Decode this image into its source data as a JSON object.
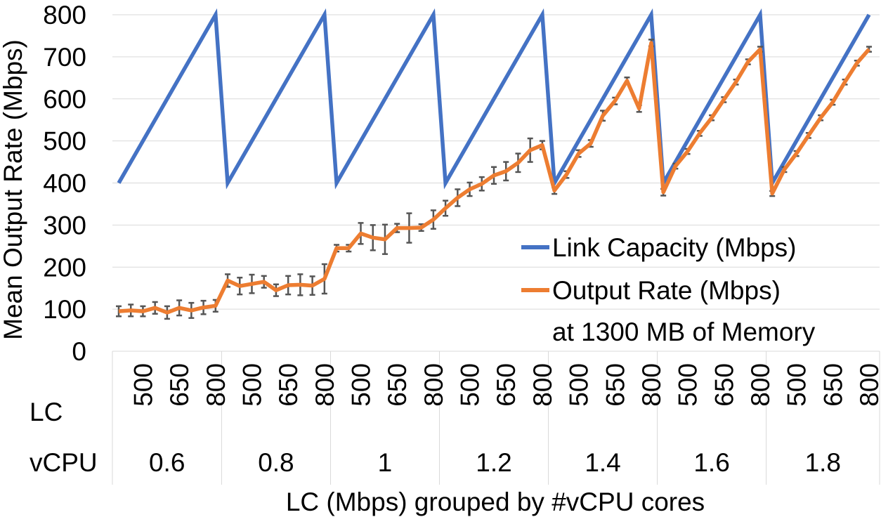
{
  "chart_data": {
    "type": "line",
    "title": "",
    "ylabel": "Mean Output Rate (Mbps)",
    "xlabel": "LC (Mbps) grouped by #vCPU cores",
    "ylim": [
      0,
      800
    ],
    "yticks": [
      0,
      100,
      200,
      300,
      400,
      500,
      600,
      700,
      800
    ],
    "grid": true,
    "row_labels": {
      "lc": "LC",
      "vcpu": "vCPU"
    },
    "lc_tick_labels": [
      "500",
      "650",
      "800"
    ],
    "groups": [
      "0.6",
      "0.8",
      "1",
      "1.2",
      "1.4",
      "1.6",
      "1.8"
    ],
    "points_per_group": 9,
    "series": [
      {
        "name": "Link Capacity (Mbps)",
        "color": "#4472C4",
        "values": [
          400,
          450,
          500,
          550,
          600,
          650,
          700,
          750,
          800,
          400,
          450,
          500,
          550,
          600,
          650,
          700,
          750,
          800,
          400,
          450,
          500,
          550,
          600,
          650,
          700,
          750,
          800,
          400,
          450,
          500,
          550,
          600,
          650,
          700,
          750,
          800,
          400,
          450,
          500,
          550,
          600,
          650,
          700,
          750,
          800,
          400,
          450,
          500,
          550,
          600,
          650,
          700,
          750,
          800,
          400,
          450,
          500,
          550,
          600,
          650,
          700,
          750,
          800
        ]
      },
      {
        "name": "Output Rate (Mbps)",
        "color": "#ED7D31",
        "values": [
          95,
          97,
          95,
          103,
          92,
          103,
          97,
          104,
          108,
          168,
          155,
          160,
          165,
          145,
          157,
          158,
          156,
          172,
          245,
          245,
          280,
          270,
          266,
          293,
          293,
          294,
          313,
          340,
          365,
          385,
          398,
          418,
          428,
          448,
          478,
          490,
          382,
          420,
          470,
          494,
          560,
          595,
          643,
          577,
          733,
          378,
          440,
          475,
          518,
          555,
          598,
          640,
          688,
          718,
          375,
          432,
          470,
          513,
          555,
          592,
          640,
          685,
          718
        ],
        "errors": [
          12,
          14,
          12,
          14,
          15,
          18,
          18,
          16,
          14,
          15,
          20,
          22,
          14,
          14,
          22,
          25,
          22,
          35,
          8,
          8,
          25,
          30,
          35,
          10,
          35,
          8,
          22,
          18,
          20,
          16,
          16,
          20,
          22,
          22,
          28,
          10,
          8,
          8,
          8,
          8,
          12,
          8,
          8,
          8,
          8,
          8,
          6,
          6,
          6,
          6,
          6,
          6,
          6,
          6,
          6,
          6,
          6,
          6,
          6,
          6,
          6,
          6,
          6
        ]
      }
    ],
    "legend": {
      "position": "bottom-right",
      "entries": [
        "Link Capacity (Mbps)",
        "Output Rate (Mbps)"
      ],
      "note": "at 1300 MB of Memory"
    }
  }
}
